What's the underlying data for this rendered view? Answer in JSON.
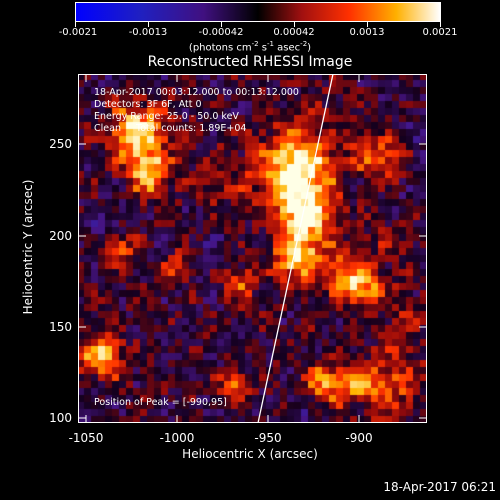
{
  "colorbar": {
    "tick_labels": [
      "-0.0021",
      "-0.0013",
      "-0.00042",
      "0.00042",
      "0.0013",
      "0.0021"
    ],
    "unit_label_parts": [
      "(photons cm",
      "-2",
      " s",
      "-1",
      " asec",
      "-2",
      ")"
    ]
  },
  "title": "Reconstructed RHESSI Image",
  "info": {
    "line1": "18-Apr-2017 00:03:12.000 to 00:13:12.000",
    "line2": "Detectors: 3F 6F, Att 0",
    "line3": "Energy Range: 25.0 - 50.0 keV",
    "line4": "Clean     Total counts: 1.89E+04"
  },
  "peak_text": "Position of Peak = [-990,95]",
  "axes": {
    "xlabel": "Heliocentric X (arcsec)",
    "ylabel": "Heliocentric Y (arcsec)",
    "xticks": [
      "-1050",
      "-1000",
      "-950",
      "-900"
    ],
    "yticks": [
      "250",
      "200",
      "150",
      "100"
    ]
  },
  "timestamp": "18-Apr-2017 06:21"
}
